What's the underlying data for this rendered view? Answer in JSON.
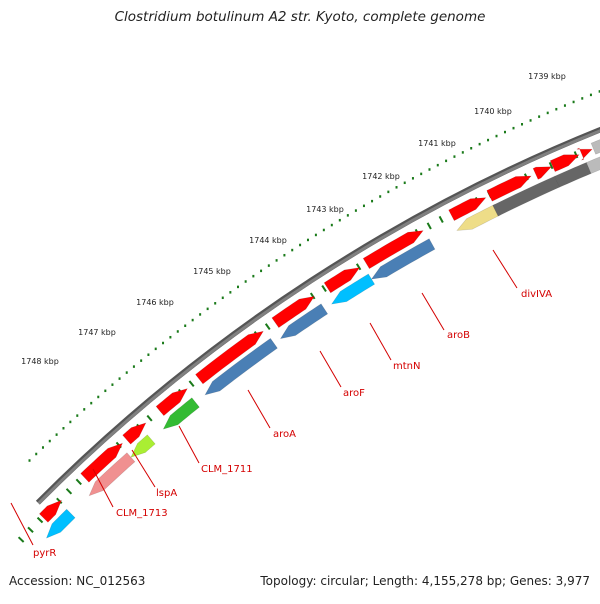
{
  "title": "Clostridium botulinum A2 str. Kyoto, complete genome",
  "footer": {
    "accession": "Accession: NC_012563",
    "summary": "Topology: circular; Length: 4,155,278 bp; Genes: 3,977"
  },
  "scale_labels": [
    "1739 kbp",
    "1740 kbp",
    "1741 kbp",
    "1742 kbp",
    "1743 kbp",
    "1744 kbp",
    "1745 kbp",
    "1746 kbp",
    "1747 kbp",
    "1748 kbp"
  ],
  "gene_labels": [
    "divIVA",
    "aroB",
    "mtnN",
    "aroF",
    "aroA",
    "CLM_1711",
    "lspA",
    "CLM_1713",
    "pyrR"
  ],
  "colors": {
    "backbone": "#808080",
    "cds_red": "#ff0000",
    "cds_blue": "#4a7fb5",
    "cds_cyan": "#00bfff",
    "cds_green": "#33bb33",
    "cds_lime": "#aaee33",
    "cds_pink": "#f09090",
    "cds_yellow": "#eedd88",
    "cds_grey": "#666666",
    "cds_lightgrey": "#bbbbbb",
    "tick_green": "#1a7a1a",
    "label_red": "#d40000"
  }
}
